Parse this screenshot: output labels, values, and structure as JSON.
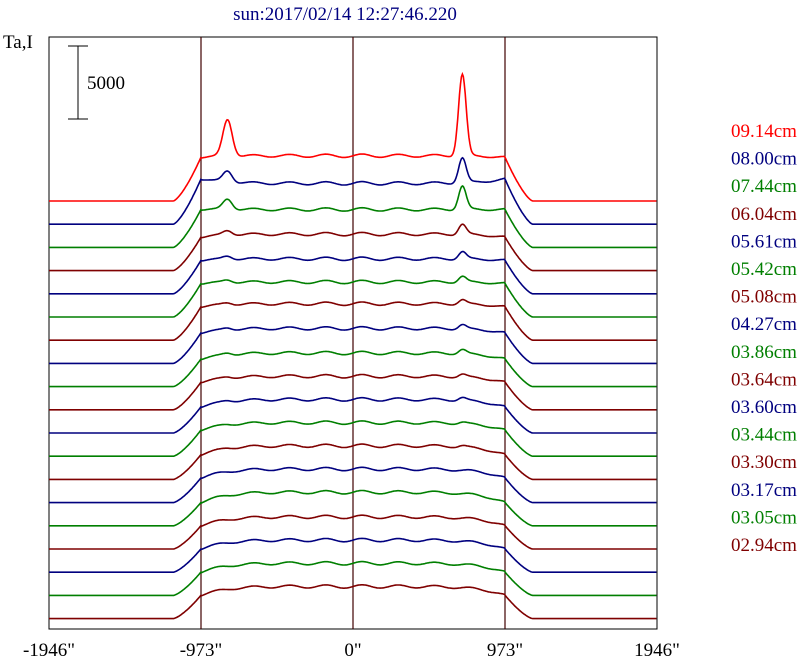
{
  "chart_data": {
    "type": "line",
    "title": "sun:2017/02/14 12:27:46.220",
    "ylabel": "Ta,I",
    "scale_bar_label": "5000",
    "scale_bar_value": 5000,
    "xlim": [
      -1946,
      1946
    ],
    "x_ticks": [
      {
        "value": -1946,
        "label": "-1946\""
      },
      {
        "value": -973,
        "label": "-973\""
      },
      {
        "value": 0,
        "label": "0\""
      },
      {
        "value": 973,
        "label": "973\""
      },
      {
        "value": 1946,
        "label": "1946\""
      }
    ],
    "vertical_markers": [
      -973,
      0,
      973
    ],
    "legend_position": "right",
    "colors": {
      "red": "#ff0000",
      "blue": "#00007f",
      "green": "#007f00",
      "brown": "#7f0000",
      "marker": "#3f0000",
      "frame": "#000000",
      "title": "#000080"
    },
    "series": [
      {
        "name": "09.14cm",
        "color": "#ff0000",
        "peak": 8600,
        "limb": 3000,
        "center": 3100
      },
      {
        "name": "08.00cm",
        "color": "#00007f",
        "peak": 4800,
        "limb": 3100,
        "center": 2800
      },
      {
        "name": "07.44cm",
        "color": "#007f00",
        "peak": 4200,
        "limb": 2600,
        "center": 2600
      },
      {
        "name": "06.04cm",
        "color": "#7f0000",
        "peak": 3000,
        "limb": 2300,
        "center": 2500
      },
      {
        "name": "05.61cm",
        "color": "#00007f",
        "peak": 2800,
        "limb": 2300,
        "center": 2400
      },
      {
        "name": "05.42cm",
        "color": "#007f00",
        "peak": 2700,
        "limb": 2300,
        "center": 2400
      },
      {
        "name": "05.08cm",
        "color": "#7f0000",
        "peak": 2600,
        "limb": 2300,
        "center": 2500
      },
      {
        "name": "04.27cm",
        "color": "#00007f",
        "peak": 2400,
        "limb": 2100,
        "center": 2400
      },
      {
        "name": "03.86cm",
        "color": "#007f00",
        "peak": 2200,
        "limb": 1900,
        "center": 2300
      },
      {
        "name": "03.64cm",
        "color": "#7f0000",
        "peak": 2100,
        "limb": 1900,
        "center": 2300
      },
      {
        "name": "03.60cm",
        "color": "#00007f",
        "peak": 2000,
        "limb": 1800,
        "center": 2300
      },
      {
        "name": "03.44cm",
        "color": "#007f00",
        "peak": 1900,
        "limb": 1800,
        "center": 2300
      },
      {
        "name": "03.30cm",
        "color": "#7f0000",
        "peak": 1800,
        "limb": 1700,
        "center": 2300
      },
      {
        "name": "03.17cm",
        "color": "#00007f",
        "peak": 1700,
        "limb": 1700,
        "center": 2300
      },
      {
        "name": "03.05cm",
        "color": "#007f00",
        "peak": 1600,
        "limb": 1600,
        "center": 2300
      },
      {
        "name": "02.94cm",
        "color": "#7f0000",
        "peak": 1500,
        "limb": 1600,
        "center": 2200
      },
      {
        "name": "",
        "color": "#00007f",
        "peak": 1400,
        "limb": 1600,
        "center": 2200
      },
      {
        "name": "",
        "color": "#007f00",
        "peak": 1400,
        "limb": 1600,
        "center": 2200
      },
      {
        "name": "",
        "color": "#7f0000",
        "peak": 1300,
        "limb": 1600,
        "center": 2200
      }
    ]
  }
}
